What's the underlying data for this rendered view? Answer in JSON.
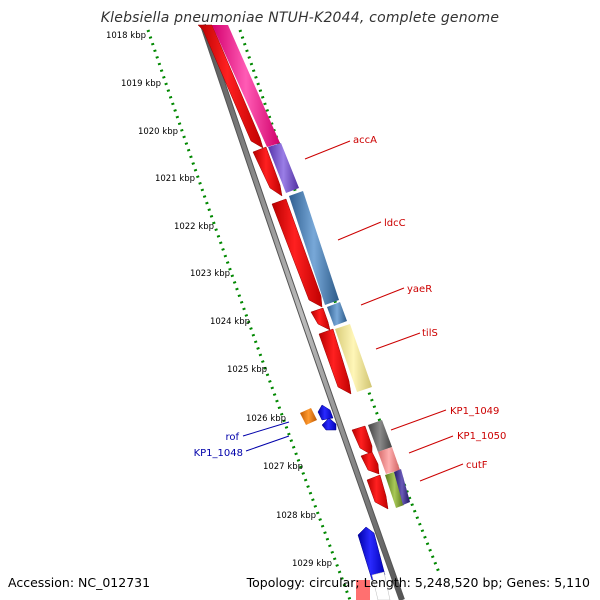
{
  "title": "Klebsiella pneumoniae NTUH-K2044, complete genome",
  "footer": {
    "accession": "Accession: NC_012731",
    "summary": "Topology: circular; Length: 5,248,520 bp; Genes: 5,110"
  },
  "ruler_ticks": [
    {
      "label": "1018 kbp"
    },
    {
      "label": "1019 kbp"
    },
    {
      "label": "1020 kbp"
    },
    {
      "label": "1021 kbp"
    },
    {
      "label": "1022 kbp"
    },
    {
      "label": "1023 kbp"
    },
    {
      "label": "1024 kbp"
    },
    {
      "label": "1025 kbp"
    },
    {
      "label": "1026 kbp"
    },
    {
      "label": "1027 kbp"
    },
    {
      "label": "1028 kbp"
    },
    {
      "label": "1029 kbp"
    }
  ],
  "gene_labels": [
    {
      "name": "accA",
      "color": "#cc0000"
    },
    {
      "name": "ldcC",
      "color": "#cc0000"
    },
    {
      "name": "yaeR",
      "color": "#cc0000"
    },
    {
      "name": "tilS",
      "color": "#cc0000"
    },
    {
      "name": "KP1_1049",
      "color": "#cc0000"
    },
    {
      "name": "KP1_1050",
      "color": "#cc0000"
    },
    {
      "name": "cutF",
      "color": "#cc0000"
    },
    {
      "name": "rof",
      "color": "#0000aa"
    },
    {
      "name": "KP1_1048",
      "color": "#0000aa"
    }
  ],
  "colors": {
    "forward_gene": "#ff0000",
    "reverse_gene": "#0000ff",
    "backbone": "#888888",
    "ruler_dots": "#008800",
    "forward_label": "#cc0000",
    "reverse_label": "#0000aa"
  }
}
